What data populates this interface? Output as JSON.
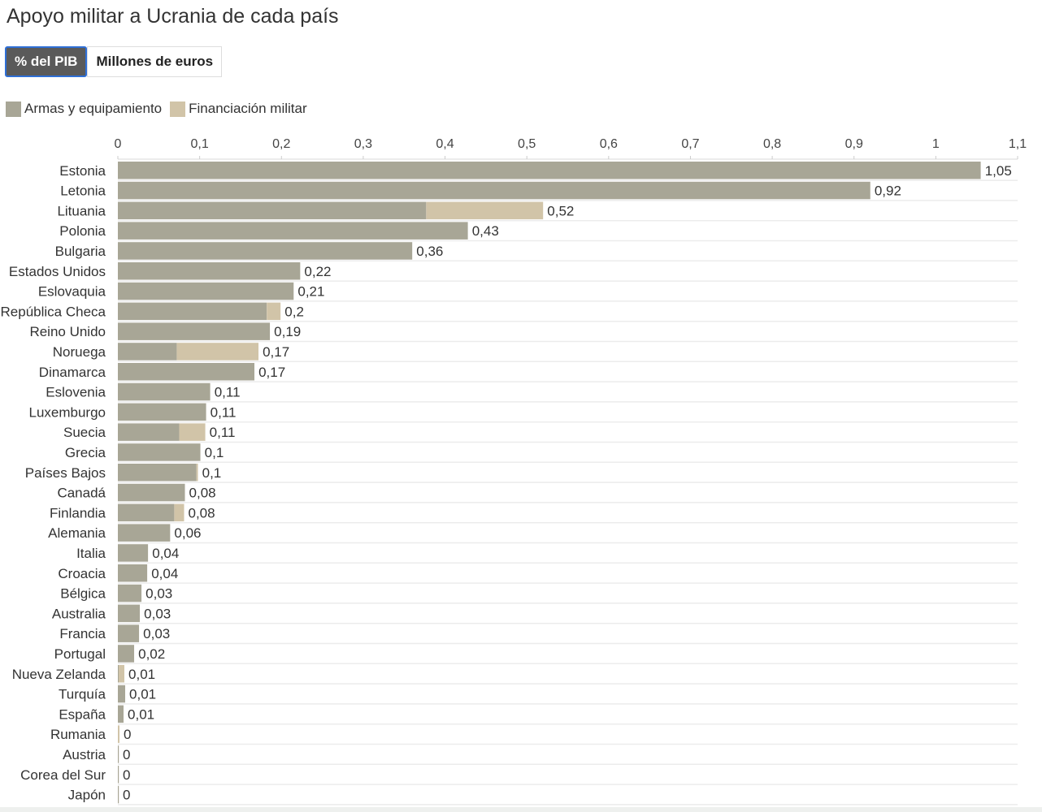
{
  "header": {
    "title": "Apoyo militar a Ucrania de cada país"
  },
  "tabs": [
    {
      "label": "% del PIB",
      "active": true
    },
    {
      "label": "Millones de euros",
      "active": false
    }
  ],
  "legend": [
    {
      "label": "Armas y equipamiento",
      "color": "#a8a696"
    },
    {
      "label": "Financiación militar",
      "color": "#d1c4a8"
    }
  ],
  "chart_data": {
    "type": "bar",
    "orientation": "horizontal",
    "stacked": true,
    "xlim": [
      0,
      1.1
    ],
    "x_ticks": [
      0,
      0.1,
      0.2,
      0.3,
      0.4,
      0.5,
      0.6,
      0.7,
      0.8,
      0.9,
      1,
      1.1
    ],
    "x_tick_labels": [
      "0",
      "0,1",
      "0,2",
      "0,3",
      "0,4",
      "0,5",
      "0,6",
      "0,7",
      "0,8",
      "0,9",
      "1",
      "1,1"
    ],
    "axis_position": "top",
    "grid": true,
    "legend_position": "top-left",
    "categories": [
      "Estonia",
      "Letonia",
      "Lituania",
      "Polonia",
      "Bulgaria",
      "Estados Unidos",
      "Eslovaquia",
      "República Checa",
      "Reino Unido",
      "Noruega",
      "Dinamarca",
      "Eslovenia",
      "Luxemburgo",
      "Suecia",
      "Grecia",
      "Países Bajos",
      "Canadá",
      "Finlandia",
      "Alemania",
      "Italia",
      "Croacia",
      "Bélgica",
      "Australia",
      "Francia",
      "Portugal",
      "Nueva Zelanda",
      "Turquía",
      "España",
      "Rumania",
      "Austria",
      "Corea del Sur",
      "Japón"
    ],
    "series": [
      {
        "name": "Armas y equipamiento",
        "color": "#a8a696",
        "values": [
          1.055,
          0.92,
          0.377,
          0.428,
          0.36,
          0.223,
          0.215,
          0.182,
          0.186,
          0.072,
          0.167,
          0.113,
          0.108,
          0.075,
          0.101,
          0.096,
          0.082,
          0.069,
          0.064,
          0.037,
          0.036,
          0.029,
          0.027,
          0.026,
          0.02,
          0.001,
          0.009,
          0.007,
          0.0,
          0.0,
          0.0,
          0.0
        ]
      },
      {
        "name": "Financiación militar",
        "color": "#d1c4a8",
        "values": [
          0.0,
          0.0,
          0.143,
          0.0,
          0.0,
          0.0,
          0.0,
          0.017,
          0.0,
          0.1,
          0.0,
          0.0,
          0.0,
          0.032,
          0.0,
          0.002,
          0.0,
          0.012,
          0.0,
          0.0,
          0.0,
          0.0,
          0.0,
          0.0,
          0.0,
          0.007,
          0.0,
          0.0,
          0.002,
          0.0,
          0.0,
          0.0
        ]
      }
    ],
    "total_labels": [
      "1,05",
      "0,92",
      "0,52",
      "0,43",
      "0,36",
      "0,22",
      "0,21",
      "0,2",
      "0,19",
      "0,17",
      "0,17",
      "0,11",
      "0,11",
      "0,11",
      "0,1",
      "0,1",
      "0,08",
      "0,08",
      "0,06",
      "0,04",
      "0,04",
      "0,03",
      "0,03",
      "0,03",
      "0,02",
      "0,01",
      "0,01",
      "0,01",
      "0",
      "0",
      "0",
      "0"
    ]
  }
}
